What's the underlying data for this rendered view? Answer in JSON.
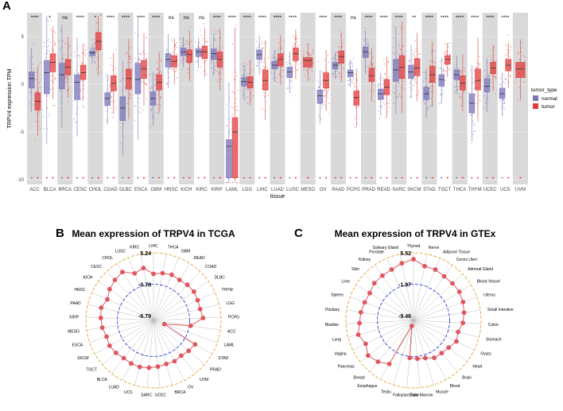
{
  "panel_labels": {
    "a": "A",
    "b": "B",
    "c": "C"
  },
  "chart_data": [
    {
      "type": "box",
      "ylabel": "TRPV4 expression TPM",
      "xlabel": "tissue",
      "ylim": [
        -10.5,
        7.5
      ],
      "yticks": [
        -10,
        -5,
        0,
        5
      ],
      "legend": {
        "title": "tumor_type",
        "entries": [
          "normal",
          "tumor"
        ],
        "placement": "right"
      },
      "colors": {
        "normal": "#7b74b8",
        "tumor": "#e23c3c",
        "shade": "#d9d9d9"
      },
      "categories": [
        "ACC",
        "BLCA",
        "BRCA",
        "CESC",
        "CHOL",
        "COAD",
        "DLBC",
        "ESCA",
        "GBM",
        "HNSC",
        "KICH",
        "KIRC",
        "KIRP",
        "LAML",
        "LGG",
        "LIHC",
        "LUAD",
        "LUSC",
        "MESO",
        "OV",
        "PAAD",
        "PCPG",
        "PRAD",
        "READ",
        "SARC",
        "SKCM",
        "STAD",
        "TGCT",
        "THCA",
        "THYM",
        "UCEC",
        "UCS",
        "UVM"
      ],
      "significance": [
        "****",
        "*",
        "ns",
        "****",
        "*",
        "****",
        "****",
        "****",
        "****",
        "ns",
        "ns",
        "ns",
        "****",
        "****",
        "****",
        "****",
        "****",
        "****",
        "",
        "****",
        "****",
        "ns",
        "****",
        "****",
        "****",
        "**",
        "****",
        "****",
        "****",
        "****",
        "****",
        "****",
        ""
      ],
      "normal_median": [
        0.6,
        1.2,
        1.0,
        0.2,
        3.3,
        -1.5,
        -2.5,
        0.5,
        -1.5,
        2.6,
        3.4,
        3.4,
        3.2,
        -6.5,
        0.3,
        3.1,
        2.0,
        1.3,
        null,
        -1.2,
        2.0,
        1.2,
        3.4,
        -1.0,
        1.5,
        1.3,
        -1.0,
        0.5,
        1.0,
        -2.0,
        -0.2,
        -1.0,
        null
      ],
      "tumor_median": [
        -1.8,
        2.3,
        1.8,
        1.2,
        4.5,
        0.1,
        0.6,
        1.6,
        0.2,
        2.4,
        3.1,
        3.4,
        2.6,
        -5.0,
        0.2,
        0.4,
        2.6,
        3.2,
        2.5,
        0.4,
        2.9,
        -1.4,
        0.9,
        -0.3,
        1.8,
        1.7,
        1.0,
        2.6,
        0.1,
        0.4,
        1.7,
        2.0,
        1.6
      ],
      "normal_q1": [
        -0.4,
        -1.0,
        -0.5,
        -1.6,
        3.0,
        -2.2,
        -3.8,
        -1.0,
        -2.2,
        1.8,
        3.0,
        2.9,
        2.6,
        -9.8,
        -0.2,
        2.6,
        1.6,
        0.7,
        null,
        -2.0,
        1.6,
        0.8,
        2.8,
        -1.6,
        0.3,
        0.6,
        -1.6,
        -0.2,
        0.5,
        -3.0,
        -0.8,
        -1.5,
        null
      ],
      "normal_q3": [
        1.3,
        2.5,
        2.2,
        1.0,
        3.5,
        -0.9,
        -1.3,
        2.2,
        -0.8,
        3.2,
        3.8,
        3.7,
        3.7,
        -5.8,
        0.7,
        3.6,
        2.4,
        1.8,
        null,
        -0.6,
        2.3,
        1.5,
        3.9,
        -0.5,
        2.6,
        2.0,
        -0.3,
        1.0,
        1.5,
        -1.0,
        0.6,
        -0.4,
        null
      ],
      "tumor_q1": [
        -2.7,
        1.3,
        1.0,
        0.5,
        3.6,
        -0.7,
        -0.5,
        0.6,
        -0.6,
        1.8,
        2.3,
        2.7,
        1.8,
        -9.8,
        -0.4,
        -0.6,
        1.9,
        2.5,
        1.8,
        -0.4,
        2.2,
        -2.2,
        0.3,
        -1.1,
        0.6,
        0.9,
        0.2,
        2.1,
        -0.6,
        -0.6,
        1.1,
        1.4,
        0.7
      ],
      "tumor_q3": [
        -0.9,
        3.2,
        2.6,
        2.0,
        5.4,
        0.9,
        1.6,
        2.5,
        1.0,
        3.0,
        3.6,
        4.0,
        3.4,
        -3.5,
        0.8,
        1.5,
        3.2,
        3.8,
        2.8,
        1.2,
        3.5,
        -0.7,
        1.7,
        0.5,
        3.0,
        2.7,
        1.9,
        3.0,
        0.9,
        1.6,
        2.3,
        2.6,
        2.3
      ]
    },
    {
      "type": "radar",
      "title": "Mean expression of TRPV4 in TCGA",
      "ring_labels": [
        "5.24",
        "-0.78",
        "-6.79"
      ],
      "rmin": -6.79,
      "rmax": 5.24,
      "categories": [
        "LIHC",
        "THCA",
        "GBM",
        "READ",
        "COAD",
        "DLBC",
        "THYM",
        "LGG",
        "PCPG",
        "ACC",
        "LAML",
        "STAD",
        "PRAD",
        "UVM",
        "OV",
        "BRCA",
        "UCEC",
        "SARC",
        "UCS",
        "LUAD",
        "BLCA",
        "TGCT",
        "SKCM",
        "ESCA",
        "MESO",
        "KIRP",
        "PAAD",
        "HNSC",
        "KICH",
        "CESC",
        "CHOL",
        "LUSC",
        "KIRC"
      ],
      "values": [
        1.2,
        1.5,
        1.7,
        1.5,
        1.7,
        1.8,
        1.6,
        1.5,
        1.8,
        -0.5,
        -5.5,
        1.5,
        1.2,
        0.9,
        1.1,
        1.0,
        1.2,
        1.4,
        1.6,
        1.6,
        1.5,
        1.8,
        2.0,
        1.8,
        2.2,
        2.4,
        2.6,
        2.0,
        2.6,
        3.0,
        3.3,
        2.0,
        2.5
      ]
    },
    {
      "type": "radar",
      "title": "Mean expression of TRPV4 in GTEx",
      "ring_labels": [
        "5.52",
        "-1.97",
        "-9.46"
      ],
      "rmin": -9.46,
      "rmax": 5.52,
      "categories": [
        "Thyroid",
        "Nerve",
        "Adipose Tissue",
        "Cervix Uteri",
        "Adrenal Gland",
        "Blood Vessel",
        "Uterus",
        "Small Intestine",
        "Colon",
        "Stomach",
        "Ovary",
        "Heart",
        "Brain",
        "Blood",
        "Muscle",
        "Bone Marrow",
        "Fallopian Tube",
        "Testis",
        "Esophagus",
        "Breast",
        "Pancreas",
        "Vagina",
        "Lung",
        "Bladder",
        "Pituitary",
        "Spleen",
        "Liver",
        "Skin",
        "Kidney",
        "Prostate",
        "Salivary Gland"
      ],
      "values": [
        4.0,
        2.6,
        2.6,
        2.2,
        2.2,
        2.3,
        2.0,
        1.6,
        1.2,
        0.4,
        0.8,
        0.0,
        -0.3,
        -0.4,
        -1.2,
        -1.4,
        -1.6,
        -9.2,
        1.3,
        2.4,
        3.1,
        2.1,
        3.0,
        2.3,
        2.1,
        1.8,
        1.7,
        2.3,
        2.4,
        2.6,
        3.3
      ]
    }
  ]
}
